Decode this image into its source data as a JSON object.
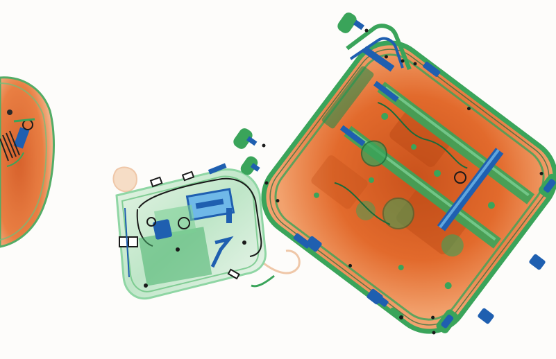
{
  "scan": {
    "background_color": "#fdfcfa",
    "colors": {
      "organic": "#e4692a",
      "organic_dark": "#c44e18",
      "organic_light": "#f0a070",
      "mixed": "#3aa45a",
      "mixed_light": "#8fd6a4",
      "metal": "#1f5fb0",
      "metal_dark": "#0e2f6a",
      "outline": "#1a1a1a"
    },
    "objects": [
      {
        "id": "partial-bag-left",
        "type": "soft bag (partially visible)"
      },
      {
        "id": "handbag-center",
        "type": "small bag with electronics"
      },
      {
        "id": "suitcase-right",
        "type": "hard-shell suitcase"
      }
    ]
  }
}
